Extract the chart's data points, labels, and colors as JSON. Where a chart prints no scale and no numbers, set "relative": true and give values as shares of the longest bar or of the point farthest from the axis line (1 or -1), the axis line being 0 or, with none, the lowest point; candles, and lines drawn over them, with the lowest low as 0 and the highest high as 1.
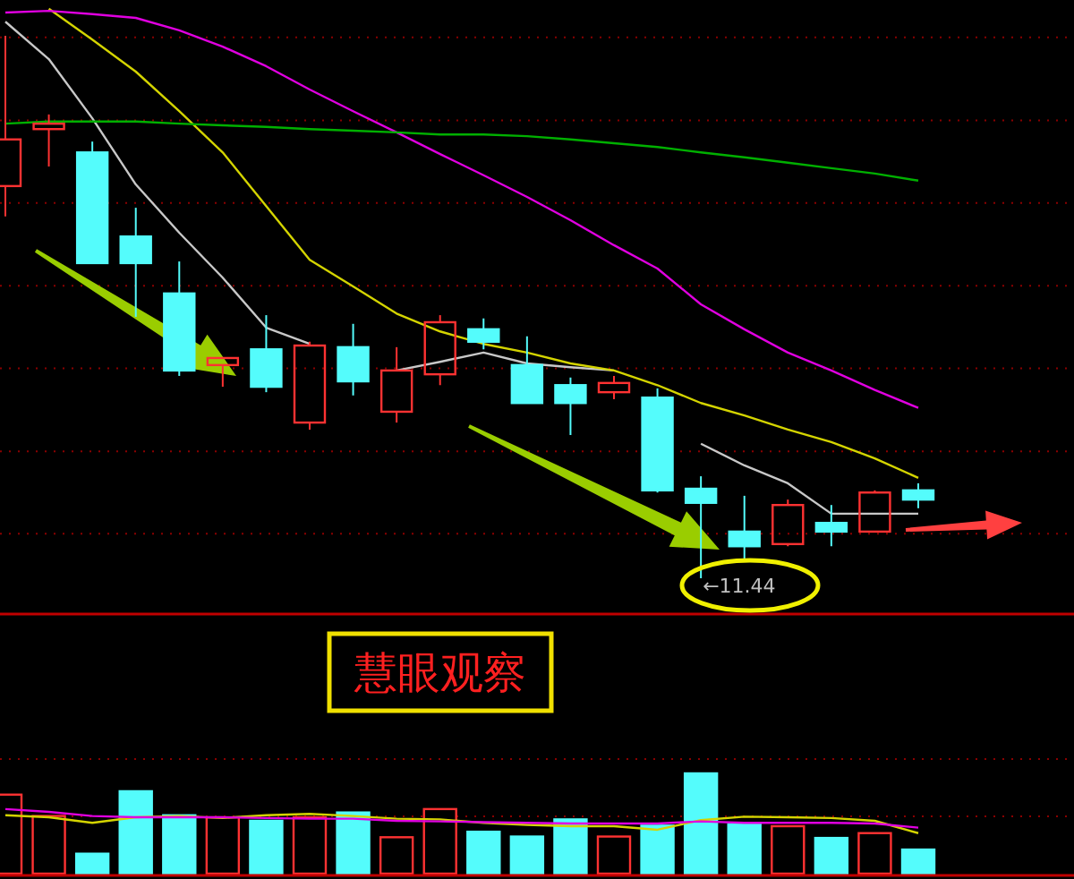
{
  "chart_data": [
    {
      "type": "candlestick",
      "relative": true,
      "categories": [
        null,
        null,
        null,
        null,
        null,
        null,
        null,
        null,
        null,
        null,
        null,
        null,
        null,
        null,
        null,
        null,
        null,
        null,
        null,
        null,
        null,
        null
      ],
      "ohlc": [
        [
          0.723,
          1,
          0.667,
          0.809
        ],
        [
          0.828,
          0.855,
          0.759,
          0.838
        ],
        [
          0.785,
          0.805,
          0.581,
          0.581
        ],
        [
          0.63,
          0.683,
          0.482,
          0.581
        ],
        [
          0.525,
          0.584,
          0.373,
          0.383
        ],
        [
          0.393,
          0.406,
          0.353,
          0.406
        ],
        [
          0.422,
          0.485,
          0.343,
          0.353
        ],
        [
          0.287,
          0.436,
          0.274,
          0.429
        ],
        [
          0.426,
          0.469,
          0.337,
          0.363
        ],
        [
          0.307,
          0.426,
          0.287,
          0.383
        ],
        [
          0.376,
          0.485,
          0.356,
          0.472
        ],
        [
          0.459,
          0.479,
          0.422,
          0.436
        ],
        [
          0.393,
          0.446,
          0.323,
          0.323
        ],
        [
          0.356,
          0.37,
          0.264,
          0.323
        ],
        [
          0.343,
          0.373,
          0.33,
          0.36
        ],
        [
          0.333,
          0.35,
          0.158,
          0.162
        ],
        [
          0.165,
          0.188,
          0,
          0.139
        ],
        [
          0.086,
          0.152,
          0.036,
          0.059
        ],
        [
          0.063,
          0.145,
          0.059,
          0.135
        ],
        [
          0.102,
          0.135,
          0.059,
          0.086
        ],
        [
          0.086,
          0.162,
          0.086,
          0.158
        ],
        [
          0.162,
          0.175,
          0.129,
          0.145
        ]
      ],
      "colors": [
        "#ff3232",
        "#ff3232",
        "#54fcfc",
        "#54fcfc",
        "#54fcfc",
        "#ff3232",
        "#54fcfc",
        "#ff3232",
        "#54fcfc",
        "#ff3232",
        "#ff3232",
        "#54fcfc",
        "#54fcfc",
        "#54fcfc",
        "#ff3232",
        "#54fcfc",
        "#54fcfc",
        "#54fcfc",
        "#ff3232",
        "#54fcfc",
        "#ff3232",
        "#54fcfc"
      ],
      "series": [
        {
          "type": "line",
          "color": "#c8c8c8",
          "values": [
            1.026,
            0.957,
            0.848,
            0.726,
            0.637,
            0.554,
            0.462,
            0.432,
            null,
            0.383,
            0.399,
            0.416,
            0.396,
            0.389,
            0.383,
            null,
            0.248,
            0.208,
            0.175,
            0.119,
            0.119,
            0.119
          ]
        },
        {
          "type": "line",
          "color": "#d4d400",
          "values": [
            null,
            1.05,
            0.993,
            0.934,
            0.861,
            0.785,
            0.686,
            0.587,
            0.538,
            0.488,
            0.455,
            0.432,
            0.416,
            0.396,
            0.383,
            0.356,
            0.323,
            0.3,
            0.274,
            0.251,
            0.221,
            0.185
          ]
        },
        {
          "type": "line",
          "color": "#e000e0",
          "values": [
            1.043,
            1.046,
            1.04,
            1.033,
            1.01,
            0.98,
            0.944,
            0.901,
            0.861,
            0.822,
            0.782,
            0.743,
            0.703,
            0.66,
            0.614,
            0.571,
            0.505,
            0.459,
            0.416,
            0.383,
            0.347,
            0.314
          ]
        },
        {
          "type": "line",
          "color": "#00b000",
          "values": [
            0.838,
            0.842,
            0.842,
            0.842,
            0.838,
            0.835,
            0.832,
            0.828,
            0.825,
            0.822,
            0.818,
            0.818,
            0.815,
            0.809,
            0.802,
            0.795,
            0.785,
            0.776,
            0.766,
            0.756,
            0.746,
            0.733
          ]
        }
      ],
      "annotations": [
        "慧眼观察",
        "←11.44"
      ],
      "ref_lines": [
        {
          "axis": "y",
          "value": 0.997,
          "color": "#8b0000",
          "line_style": "dotted"
        },
        {
          "axis": "y",
          "value": 0.844,
          "color": "#8b0000",
          "line_style": "dotted"
        },
        {
          "axis": "y",
          "value": 0.692,
          "color": "#8b0000",
          "line_style": "dotted"
        },
        {
          "axis": "y",
          "value": 0.539,
          "color": "#8b0000",
          "line_style": "dotted"
        },
        {
          "axis": "y",
          "value": 0.387,
          "color": "#8b0000",
          "line_style": "dotted"
        },
        {
          "axis": "y",
          "value": 0.234,
          "color": "#8b0000",
          "line_style": "dotted"
        },
        {
          "axis": "y",
          "value": 0.082,
          "color": "#8b0000",
          "line_style": "dotted"
        }
      ]
    },
    {
      "type": "bar",
      "relative": true,
      "ref_lines": [
        {
          "axis": "y",
          "value": 1.143,
          "color": "#8b0000",
          "line_style": "dotted"
        },
        {
          "axis": "y",
          "value": 0.571,
          "color": "#8b0000",
          "line_style": "dotted"
        }
      ],
      "categories": [
        null,
        null,
        null,
        null,
        null,
        null,
        null,
        null,
        null,
        null,
        null,
        null,
        null,
        null,
        null,
        null,
        null,
        null,
        null,
        null,
        null,
        null
      ],
      "values": [
        0.788,
        0.575,
        0.199,
        0.822,
        0.582,
        0.562,
        0.527,
        0.562,
        0.61,
        0.363,
        0.644,
        0.418,
        0.37,
        0.541,
        0.37,
        0.479,
        1,
        0.493,
        0.473,
        0.356,
        0.404,
        0.24
      ],
      "colors": [
        "#ff3232",
        "#ff3232",
        "#54fcfc",
        "#54fcfc",
        "#54fcfc",
        "#ff3232",
        "#54fcfc",
        "#ff3232",
        "#54fcfc",
        "#ff3232",
        "#ff3232",
        "#54fcfc",
        "#54fcfc",
        "#54fcfc",
        "#ff3232",
        "#54fcfc",
        "#54fcfc",
        "#54fcfc",
        "#ff3232",
        "#54fcfc",
        "#ff3232",
        "#54fcfc"
      ],
      "series": [
        {
          "type": "line",
          "color": "#d4d400",
          "values": [
            0.582,
            0.562,
            0.507,
            0.562,
            0.575,
            0.555,
            0.582,
            0.596,
            0.575,
            0.548,
            0.541,
            0.507,
            0.486,
            0.473,
            0.473,
            0.438,
            0.534,
            0.568,
            0.562,
            0.555,
            0.527,
            0.404
          ]
        },
        {
          "type": "line",
          "color": "#e000e0",
          "values": [
            0.644,
            0.616,
            0.575,
            0.562,
            0.562,
            0.562,
            0.555,
            0.548,
            0.548,
            0.527,
            0.521,
            0.514,
            0.507,
            0.5,
            0.5,
            0.5,
            0.521,
            0.507,
            0.507,
            0.507,
            0.5,
            0.459
          ]
        }
      ]
    }
  ]
}
